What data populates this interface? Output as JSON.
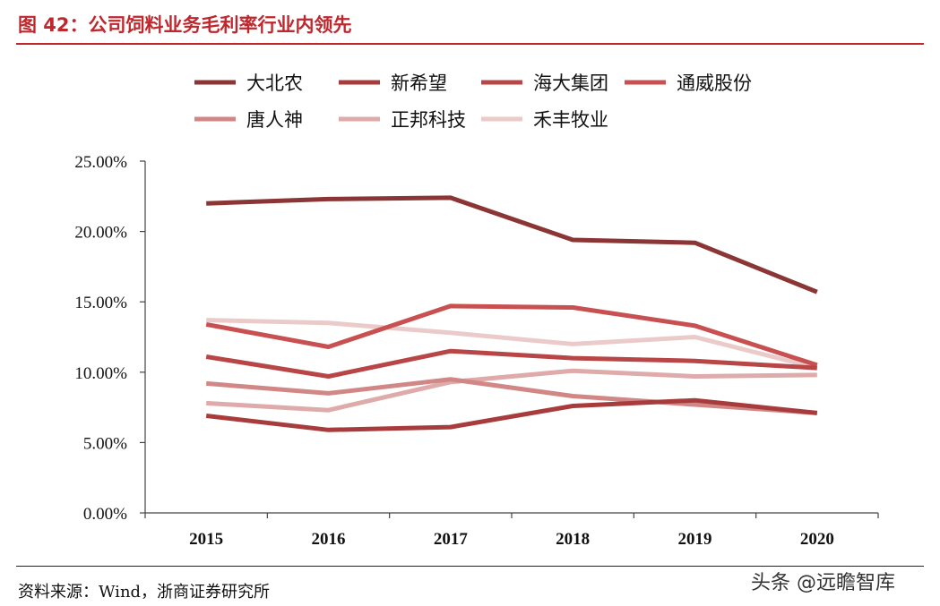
{
  "figure": {
    "title": "图 42：公司饲料业务毛利率行业内领先",
    "source": "资料来源：Wind，浙商证券研究所",
    "watermark": "头条 @远瞻智库"
  },
  "chart_data": {
    "type": "line",
    "title": "",
    "xlabel": "",
    "ylabel": "",
    "x": [
      "2015",
      "2016",
      "2017",
      "2018",
      "2019",
      "2020"
    ],
    "ylim": [
      0,
      0.25
    ],
    "yticks": [
      0,
      0.05,
      0.1,
      0.15,
      0.2,
      0.25
    ],
    "ytick_labels": [
      "0.00%",
      "5.00%",
      "10.00%",
      "15.00%",
      "20.00%",
      "25.00%"
    ],
    "grid": false,
    "legend_position": "top",
    "series": [
      {
        "name": "大北农",
        "color": "#8b3535",
        "values": [
          0.22,
          0.223,
          0.224,
          0.194,
          0.192,
          0.157
        ]
      },
      {
        "name": "新希望",
        "color": "#a83c3c",
        "values": [
          0.069,
          0.059,
          0.061,
          0.076,
          0.08,
          0.071
        ]
      },
      {
        "name": "海大集团",
        "color": "#b94646",
        "values": [
          0.111,
          0.097,
          0.115,
          0.11,
          0.108,
          0.103
        ]
      },
      {
        "name": "通威股份",
        "color": "#c85050",
        "values": [
          0.134,
          0.118,
          0.147,
          0.146,
          0.133,
          0.105
        ]
      },
      {
        "name": "唐人神",
        "color": "#d28787",
        "values": [
          0.092,
          0.085,
          0.095,
          0.083,
          0.077,
          0.071
        ]
      },
      {
        "name": "正邦科技",
        "color": "#deaaaa",
        "values": [
          0.078,
          0.073,
          0.093,
          0.101,
          0.097,
          0.098
        ]
      },
      {
        "name": "禾丰牧业",
        "color": "#ebcaca",
        "values": [
          0.137,
          0.135,
          0.128,
          0.12,
          0.125,
          0.103
        ]
      }
    ]
  }
}
